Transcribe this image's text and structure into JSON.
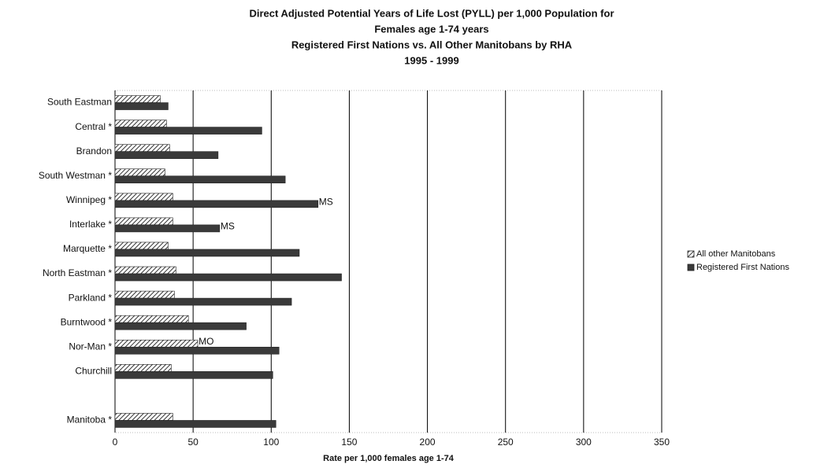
{
  "chart_data": {
    "type": "barh",
    "title": [
      "Direct Adjusted Potential Years of Life Lost (PYLL) per 1,000 Population for",
      "Females age 1-74 years",
      "Registered First Nations vs. All Other Manitobans by RHA",
      "1995 - 1999"
    ],
    "xlabel": "Rate per 1,000 females age 1-74",
    "categories": [
      "South Eastman",
      "Central *",
      "Brandon",
      "South Westman *",
      "Winnipeg *",
      "Interlake *",
      "Marquette *",
      "North Eastman *",
      "Parkland *",
      "Burntwood *",
      "Nor-Man *",
      "Churchill",
      null,
      "Manitoba *"
    ],
    "series": [
      {
        "name": "All other Manitobans",
        "color": "#444444",
        "hatch": true,
        "values": [
          29,
          33,
          35,
          32,
          37,
          37,
          34,
          39,
          38,
          47,
          53,
          36,
          null,
          37
        ]
      },
      {
        "name": "Registered First Nations",
        "color": "#3a3a3a",
        "hatch": false,
        "values": [
          34,
          94,
          66,
          109,
          130,
          67,
          118,
          145,
          113,
          84,
          105,
          101,
          null,
          103
        ]
      }
    ],
    "annotations": [
      {
        "text": "MS",
        "category": "Winnipeg *",
        "series": "Registered First Nations"
      },
      {
        "text": "MS",
        "category": "Interlake *",
        "series": "Registered First Nations"
      },
      {
        "text": "MO",
        "category": "Nor-Man *",
        "series": "All other Manitobans"
      }
    ],
    "xlim": [
      0,
      350
    ],
    "xticks": [
      0,
      50,
      100,
      150,
      200,
      250,
      300,
      350
    ],
    "grid": true,
    "legend": "right"
  }
}
